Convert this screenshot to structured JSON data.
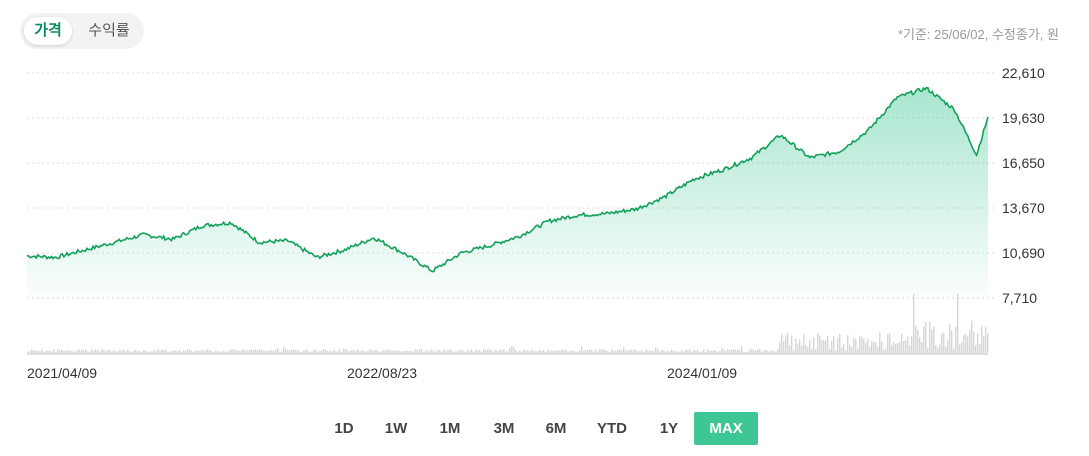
{
  "toggle": {
    "price_label": "가격",
    "return_label": "수익률"
  },
  "basis_text": "*기준: 25/06/02, 수정종가, 원",
  "range_buttons": [
    "1D",
    "1W",
    "1M",
    "3M",
    "6M",
    "YTD",
    "1Y",
    "MAX"
  ],
  "active_range": "MAX",
  "colors": {
    "line": "#14a05a",
    "fill": "#3ec795",
    "volume": "#d6d6d6",
    "active_button": "#3ec795",
    "toggle_active_text": "#0a8a62"
  },
  "chart_data": {
    "type": "area",
    "title": "",
    "xlabel": "",
    "ylabel": "",
    "x_ticks": [
      "2021/04/09",
      "2022/08/23",
      "2024/01/09"
    ],
    "y_ticks": [
      "22,610",
      "19,630",
      "16,650",
      "13,670",
      "10,690",
      "7,710"
    ],
    "ylim": [
      7710,
      22610
    ],
    "grid": true,
    "y_axis_side": "right",
    "series": [
      {
        "x": [
          "2021/04/09",
          "2021/05/25",
          "2021/07/10",
          "2021/08/25",
          "2021/10/10",
          "2021/11/25",
          "2022/01/10",
          "2022/02/25",
          "2022/04/10",
          "2022/05/25",
          "2022/07/10",
          "2022/08/23",
          "2022/10/08",
          "2022/11/23",
          "2023/01/08",
          "2023/02/23",
          "2023/04/10",
          "2023/05/25",
          "2023/07/10",
          "2023/08/25",
          "2023/10/10",
          "2023/11/25",
          "2024/01/09",
          "2024/02/25",
          "2024/04/10",
          "2024/05/25",
          "2024/07/10",
          "2024/08/25",
          "2024/10/10",
          "2024/11/25",
          "2025/01/10",
          "2025/02/25",
          "2025/04/10",
          "2025/05/15",
          "2025/06/02"
        ],
        "y": [
          10500,
          10400,
          10900,
          11400,
          11900,
          11600,
          12500,
          12700,
          11400,
          11500,
          10400,
          10900,
          11700,
          10700,
          9500,
          10700,
          11200,
          11800,
          12800,
          13200,
          13300,
          13600,
          14400,
          15600,
          16200,
          17000,
          18500,
          17000,
          17400,
          18800,
          21000,
          21600,
          20200,
          17200,
          19700
        ]
      }
    ]
  }
}
